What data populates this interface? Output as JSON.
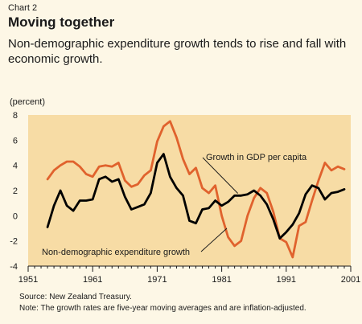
{
  "header": {
    "chart_label": "Chart 2",
    "title": "Moving together",
    "subtitle": "Non-demographic expenditure growth tends to rise and fall with economic growth."
  },
  "footer": {
    "source": "Source: New Zealand Treasury.",
    "note": "Note: The growth rates are five-year moving averages and are inflation-adjusted."
  },
  "colors": {
    "plot_background": "#f7dca5",
    "gdp_series": "#000000",
    "expenditure_series": "#e0622d",
    "page_background": "#fdf7e6"
  },
  "chart_data": {
    "type": "line",
    "ylabel": "(percent)",
    "xlim": [
      1951,
      2001
    ],
    "ylim": [
      -4,
      8
    ],
    "xticks": [
      1951,
      1961,
      1971,
      1981,
      1991,
      2001
    ],
    "yticks": [
      -4,
      -2,
      0,
      2,
      4,
      6,
      8
    ],
    "grid": false,
    "series": [
      {
        "name": "Growth in GDP per capita",
        "color": "#000000",
        "x": [
          1954,
          1955,
          1956,
          1957,
          1958,
          1959,
          1960,
          1961,
          1962,
          1963,
          1964,
          1965,
          1966,
          1967,
          1968,
          1969,
          1970,
          1971,
          1972,
          1973,
          1974,
          1975,
          1976,
          1977,
          1978,
          1979,
          1980,
          1981,
          1982,
          1983,
          1984,
          1985,
          1986,
          1987,
          1988,
          1989,
          1990,
          1991,
          1992,
          1993,
          1994,
          1995,
          1996,
          1997,
          1998,
          1999,
          2000
        ],
        "y": [
          -0.9,
          0.8,
          2.0,
          0.8,
          0.4,
          1.2,
          1.2,
          1.3,
          2.9,
          3.1,
          2.7,
          2.9,
          1.5,
          0.5,
          0.7,
          0.9,
          1.8,
          4.2,
          4.9,
          3.1,
          2.2,
          1.6,
          -0.4,
          -0.6,
          0.5,
          0.6,
          1.2,
          0.8,
          1.1,
          1.6,
          1.6,
          1.7,
          2.0,
          1.6,
          0.9,
          -0.3,
          -1.8,
          -1.3,
          -0.7,
          0.2,
          1.7,
          2.4,
          2.2,
          1.3,
          1.8,
          1.9,
          2.1
        ]
      },
      {
        "name": "Non-demographic expenditure growth",
        "color": "#e0622d",
        "x": [
          1954,
          1955,
          1956,
          1957,
          1958,
          1959,
          1960,
          1961,
          1962,
          1963,
          1964,
          1965,
          1966,
          1967,
          1968,
          1969,
          1970,
          1971,
          1972,
          1973,
          1974,
          1975,
          1976,
          1977,
          1978,
          1979,
          1980,
          1981,
          1982,
          1983,
          1984,
          1985,
          1986,
          1987,
          1988,
          1989,
          1990,
          1991,
          1992,
          1993,
          1994,
          1995,
          1996,
          1997,
          1998,
          1999,
          2000
        ],
        "y": [
          2.9,
          3.6,
          4.0,
          4.3,
          4.3,
          3.9,
          3.3,
          3.1,
          3.9,
          4.0,
          3.9,
          4.2,
          2.8,
          2.3,
          2.5,
          3.2,
          3.6,
          5.9,
          7.1,
          7.5,
          6.2,
          4.5,
          3.3,
          3.8,
          2.2,
          1.8,
          2.4,
          0.0,
          -1.7,
          -2.4,
          -2.0,
          0.0,
          1.4,
          2.2,
          1.8,
          0.3,
          -1.8,
          -2.1,
          -3.3,
          -0.8,
          -0.5,
          1.2,
          2.8,
          4.2,
          3.6,
          3.9,
          3.7
        ]
      }
    ],
    "annotations": [
      {
        "text": "Growth in GDP per capita",
        "series": "Growth in GDP per capita"
      },
      {
        "text": "Non-demographic expenditure growth",
        "series": "Non-demographic expenditure growth"
      }
    ]
  }
}
